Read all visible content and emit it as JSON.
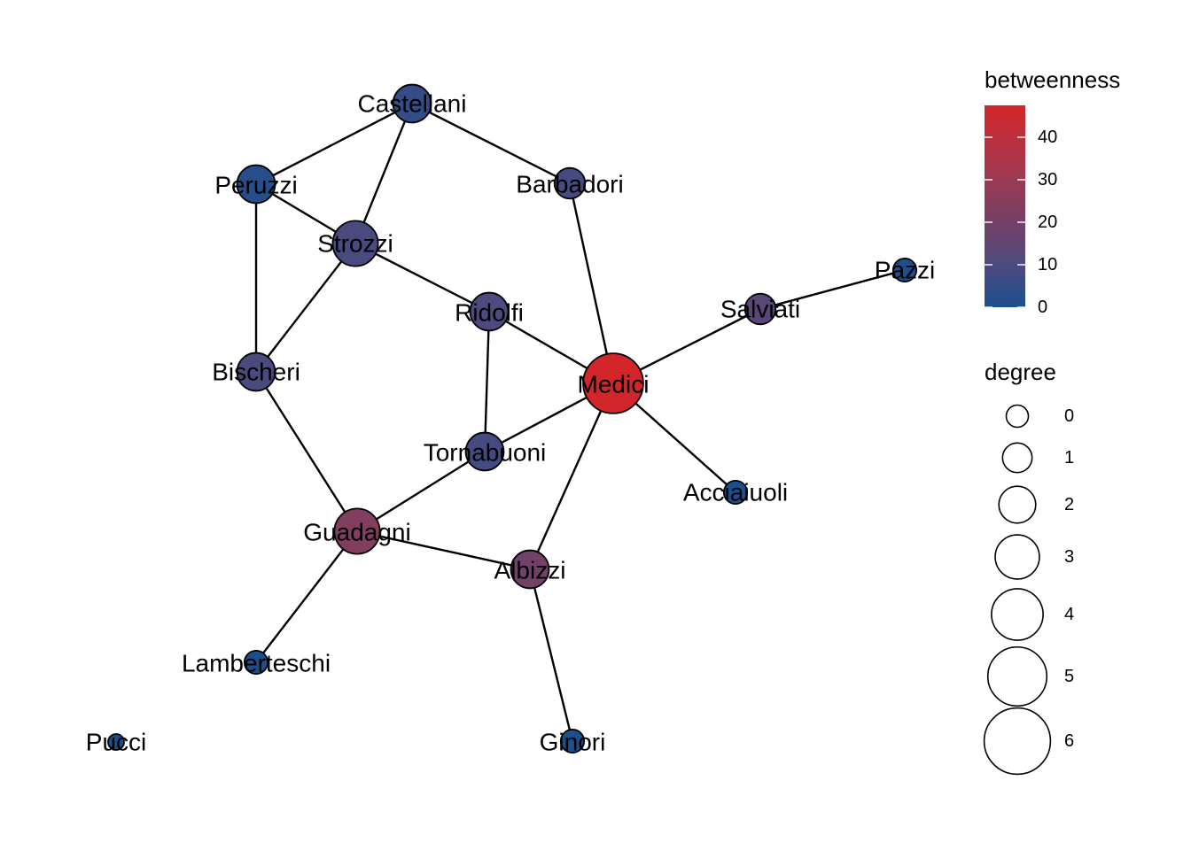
{
  "legend": {
    "color_title": "betweenness",
    "color_ticks": [
      "0",
      "10",
      "20",
      "30",
      "40"
    ],
    "size_title": "degree",
    "size_ticks": [
      "0",
      "1",
      "2",
      "3",
      "4",
      "5",
      "6"
    ]
  },
  "colors": {
    "low": "#1B4F8E",
    "high": "#D2262A",
    "edge": "#000000"
  },
  "network": {
    "nodes": [
      {
        "id": "Castellani",
        "label": "Castellani",
        "betweenness": 5.0,
        "degree": 3
      },
      {
        "id": "Peruzzi",
        "label": "Peruzzi",
        "betweenness": 2.0,
        "degree": 3
      },
      {
        "id": "Barbadori",
        "label": "Barbadori",
        "betweenness": 8.5,
        "degree": 2
      },
      {
        "id": "Strozzi",
        "label": "Strozzi",
        "betweenness": 9.3,
        "degree": 4
      },
      {
        "id": "Pazzi",
        "label": "Pazzi",
        "betweenness": 0.0,
        "degree": 1
      },
      {
        "id": "Ridolfi",
        "label": "Ridolfi",
        "betweenness": 10.3,
        "degree": 3
      },
      {
        "id": "Salviati",
        "label": "Salviati",
        "betweenness": 13.0,
        "degree": 2
      },
      {
        "id": "Bischeri",
        "label": "Bischeri",
        "betweenness": 9.5,
        "degree": 3
      },
      {
        "id": "Medici",
        "label": "Medici",
        "betweenness": 47.5,
        "degree": 6
      },
      {
        "id": "Tornabuoni",
        "label": "Tornabuoni",
        "betweenness": 8.3,
        "degree": 3
      },
      {
        "id": "Acciaiuoli",
        "label": "Acciaiuoli",
        "betweenness": 0.0,
        "degree": 1
      },
      {
        "id": "Guadagni",
        "label": "Guadagni",
        "betweenness": 23.2,
        "degree": 4
      },
      {
        "id": "Albizzi",
        "label": "Albizzi",
        "betweenness": 19.3,
        "degree": 3
      },
      {
        "id": "Lamberteschi",
        "label": "Lamberteschi",
        "betweenness": 0.0,
        "degree": 1
      },
      {
        "id": "Pucci",
        "label": "Pucci",
        "betweenness": 0.0,
        "degree": 0
      },
      {
        "id": "Ginori",
        "label": "Ginori",
        "betweenness": 0.0,
        "degree": 1
      }
    ],
    "edges": [
      [
        "Castellani",
        "Peruzzi"
      ],
      [
        "Castellani",
        "Strozzi"
      ],
      [
        "Castellani",
        "Barbadori"
      ],
      [
        "Peruzzi",
        "Strozzi"
      ],
      [
        "Peruzzi",
        "Bischeri"
      ],
      [
        "Strozzi",
        "Bischeri"
      ],
      [
        "Strozzi",
        "Ridolfi"
      ],
      [
        "Barbadori",
        "Medici"
      ],
      [
        "Ridolfi",
        "Medici"
      ],
      [
        "Ridolfi",
        "Tornabuoni"
      ],
      [
        "Salviati",
        "Pazzi"
      ],
      [
        "Salviati",
        "Medici"
      ],
      [
        "Bischeri",
        "Guadagni"
      ],
      [
        "Medici",
        "Tornabuoni"
      ],
      [
        "Medici",
        "Acciaiuoli"
      ],
      [
        "Medici",
        "Albizzi"
      ],
      [
        "Tornabuoni",
        "Guadagni"
      ],
      [
        "Guadagni",
        "Albizzi"
      ],
      [
        "Guadagni",
        "Lamberteschi"
      ],
      [
        "Albizzi",
        "Ginori"
      ]
    ]
  }
}
